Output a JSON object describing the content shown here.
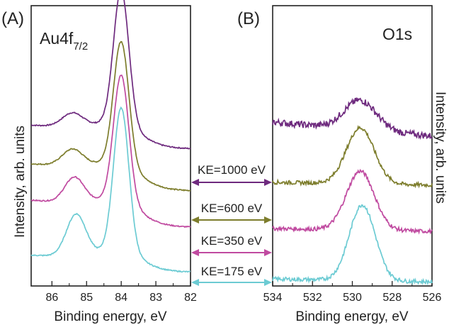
{
  "panels": [
    {
      "panel_label": "(A)",
      "peak_label_main": "Au4f",
      "peak_label_sub": "7/2",
      "xlabel": "Binding energy, eV",
      "ylabel": "Intensity, arb. units",
      "xticks": [
        "86",
        "85",
        "84",
        "83",
        "82"
      ]
    },
    {
      "panel_label": "(B)",
      "peak_label_main": "O1s",
      "xlabel": "Binding energy, eV",
      "ylabel": "Intensity, arb. units",
      "xticks": [
        "534",
        "532",
        "530",
        "528",
        "526"
      ]
    }
  ],
  "ke_labels": [
    "KE=1000 eV",
    "KE=600 eV",
    "KE=350 eV",
    "KE=175 eV"
  ],
  "colors": {
    "KE=1000 eV": "#6e2a7e",
    "KE=600 eV": "#7d7d2c",
    "KE=350 eV": "#c04aa0",
    "KE=175 eV": "#6ccbd3"
  },
  "chart_data": [
    {
      "type": "line",
      "x_reversed": true,
      "xlim": [
        86.6,
        82
      ],
      "ylim": [
        0,
        1
      ],
      "grid": false,
      "legend": "none",
      "series": [
        {
          "name": "KE=1000 eV",
          "offset": 0.49,
          "bg": [
            0.07,
            0.14
          ],
          "peaks": [
            [
              84.0,
              0.48,
              0.22
            ],
            [
              85.4,
              0.05,
              0.3
            ],
            [
              83.95,
              0.05,
              0.6
            ]
          ]
        },
        {
          "name": "KE=600 eV",
          "offset": 0.34,
          "bg": [
            0.08,
            0.16
          ],
          "peaks": [
            [
              84.0,
              0.44,
              0.22
            ],
            [
              85.4,
              0.06,
              0.3
            ],
            [
              83.95,
              0.05,
              0.6
            ]
          ]
        },
        {
          "name": "KE=350 eV",
          "offset": 0.21,
          "bg": [
            0.08,
            0.16
          ],
          "peaks": [
            [
              84.0,
              0.45,
              0.22
            ],
            [
              85.35,
              0.09,
              0.28
            ],
            [
              83.95,
              0.05,
              0.6
            ]
          ]
        },
        {
          "name": "KE=175 eV",
          "offset": 0.05,
          "bg": [
            0.05,
            0.18
          ],
          "peaks": [
            [
              84.0,
              0.51,
              0.22
            ],
            [
              85.3,
              0.15,
              0.28
            ],
            [
              83.95,
              0.05,
              0.6
            ]
          ]
        }
      ]
    },
    {
      "type": "line",
      "x_reversed": true,
      "xlim": [
        534,
        526
      ],
      "ylim": [
        0,
        1
      ],
      "grid": false,
      "legend": "none",
      "series": [
        {
          "name": "KE=1000 eV",
          "offset": 0.585,
          "slope": -0.05,
          "peak": [
            529.6,
            0.105,
            0.8
          ],
          "noise": 0.012
        },
        {
          "name": "KE=600 eV",
          "offset": 0.37,
          "slope": -0.01,
          "peak": [
            529.6,
            0.2,
            0.7
          ],
          "noise": 0.007
        },
        {
          "name": "KE=350 eV",
          "offset": 0.205,
          "slope": -0.01,
          "peak": [
            529.6,
            0.21,
            0.7
          ],
          "noise": 0.007
        },
        {
          "name": "KE=175 eV",
          "offset": 0.025,
          "slope": -0.01,
          "peak": [
            529.5,
            0.27,
            0.65
          ],
          "noise": 0.007
        }
      ]
    }
  ]
}
